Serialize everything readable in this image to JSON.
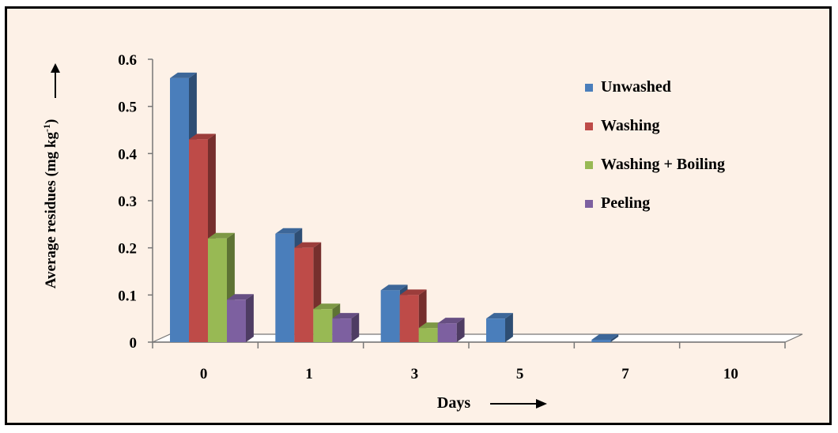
{
  "chart_data": {
    "type": "bar",
    "title": "",
    "xlabel": "Days",
    "ylabel": "Average residues (mg kg",
    "ylabel_sup": "-1",
    "ylabel_close": ")",
    "categories": [
      "0",
      "1",
      "3",
      "5",
      "7",
      "10"
    ],
    "series": [
      {
        "name": "Unwashed",
        "values": [
          0.56,
          0.23,
          0.11,
          0.05,
          0.005,
          0
        ]
      },
      {
        "name": "Washing",
        "values": [
          0.43,
          0.2,
          0.1,
          0,
          0,
          0
        ]
      },
      {
        "name": "Washing + Boiling",
        "values": [
          0.22,
          0.07,
          0.03,
          0,
          0,
          0
        ]
      },
      {
        "name": "Peeling",
        "values": [
          0.09,
          0.05,
          0.04,
          0,
          0,
          0
        ]
      }
    ],
    "ylim": [
      0,
      0.6
    ],
    "yticks": [
      "0",
      "0.1",
      "0.2",
      "0.3",
      "0.4",
      "0.5",
      "0.6"
    ],
    "grid": false,
    "legend_position": "top-right",
    "colors": {
      "Unwashed": "#4a7ebb",
      "Washing": "#be4b48",
      "Washing + Boiling": "#98b954",
      "Peeling": "#7d60a0"
    }
  }
}
